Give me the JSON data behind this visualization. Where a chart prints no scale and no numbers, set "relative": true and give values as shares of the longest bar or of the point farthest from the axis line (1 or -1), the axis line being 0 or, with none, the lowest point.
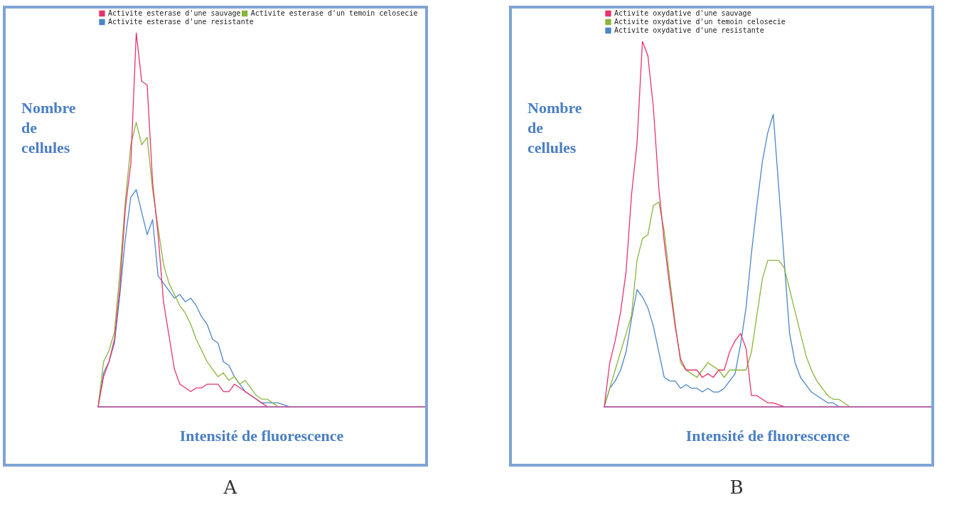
{
  "chart_data": [
    {
      "type": "line",
      "title": "A",
      "xlabel": "Intensité de fluorescence",
      "ylabel": "Nombre de cellules",
      "relative": true,
      "legend": "top left",
      "grid": false,
      "marker": "none",
      "categories": [
        null,
        null,
        null,
        null,
        null,
        null,
        null,
        null,
        null,
        null,
        null,
        null,
        null,
        null,
        null,
        null,
        null,
        null,
        null,
        null,
        null,
        null,
        null,
        null,
        null,
        null,
        null,
        null,
        null,
        null,
        null,
        null,
        null,
        null,
        null,
        null,
        null,
        null,
        null,
        null,
        null,
        null,
        null,
        null,
        null,
        null,
        null,
        null,
        null,
        null,
        null,
        null,
        null,
        null,
        null,
        null,
        null,
        null,
        null,
        null,
        null
      ],
      "series": [
        {
          "name": "Activite esterase d'une sauvage",
          "color": "#e8336b",
          "values": [
            0,
            0.08,
            0.12,
            0.18,
            0.32,
            0.53,
            0.65,
            1,
            0.87,
            0.86,
            0.6,
            0.46,
            0.28,
            0.19,
            0.1,
            0.06,
            0.05,
            0.04,
            0.05,
            0.05,
            0.06,
            0.06,
            0.06,
            0.04,
            0.04,
            0.06,
            0.05,
            0.04,
            0.03,
            0.02,
            0.01,
            0,
            null,
            null,
            null,
            null,
            null,
            null,
            null,
            null,
            null,
            null,
            null,
            null,
            null,
            null,
            null,
            null,
            null,
            null,
            null,
            null,
            null,
            null,
            null,
            null,
            null,
            null,
            null,
            null,
            null
          ]
        },
        {
          "name": "Activite esterase d'un temoin celosecie",
          "color": "#8ab43c",
          "values": [
            0,
            0.12,
            0.15,
            0.2,
            0.36,
            0.55,
            0.7,
            0.76,
            0.7,
            0.72,
            0.58,
            0.48,
            0.38,
            0.33,
            0.3,
            0.27,
            0.25,
            0.22,
            0.18,
            0.15,
            0.12,
            0.1,
            0.08,
            0.09,
            0.07,
            0.08,
            0.06,
            0.07,
            0.05,
            0.03,
            0.02,
            0.02,
            0.01,
            0,
            null,
            null,
            null,
            null,
            null,
            null,
            null,
            null,
            null,
            null,
            null,
            null,
            null,
            null,
            null,
            null,
            null,
            null,
            null,
            null,
            null,
            null,
            null,
            null,
            null,
            null,
            null
          ]
        },
        {
          "name": "Activite esterase d'une resistante",
          "color": "#4a86c8",
          "values": [
            0,
            0.09,
            0.12,
            0.17,
            0.3,
            0.45,
            0.56,
            0.58,
            0.52,
            0.46,
            0.5,
            0.35,
            0.33,
            0.31,
            0.29,
            0.3,
            0.28,
            0.29,
            0.27,
            0.24,
            0.22,
            0.18,
            0.17,
            0.12,
            0.11,
            0.08,
            0.06,
            0.04,
            0.03,
            0.02,
            0.01,
            0.01,
            0.01,
            0.01,
            0.005,
            0,
            null,
            null,
            null,
            null,
            null,
            null,
            null,
            null,
            null,
            null,
            null,
            null,
            null,
            null,
            null,
            null,
            null,
            null,
            null,
            null,
            null,
            null,
            null,
            null,
            null
          ]
        }
      ]
    },
    {
      "type": "line",
      "title": "B",
      "xlabel": "Intensité de fluorescence",
      "ylabel": "Nombre de cellules",
      "relative": true,
      "legend": "top left",
      "grid": false,
      "marker": "none",
      "categories": [
        null,
        null,
        null,
        null,
        null,
        null,
        null,
        null,
        null,
        null,
        null,
        null,
        null,
        null,
        null,
        null,
        null,
        null,
        null,
        null,
        null,
        null,
        null,
        null,
        null,
        null,
        null,
        null,
        null,
        null,
        null,
        null,
        null,
        null,
        null,
        null,
        null,
        null,
        null,
        null,
        null,
        null,
        null,
        null,
        null,
        null,
        null,
        null,
        null,
        null,
        null,
        null,
        null,
        null,
        null,
        null,
        null,
        null,
        null,
        null,
        null
      ],
      "series": [
        {
          "name": "Activite oxydative d'une sauvage",
          "color": "#e8336b",
          "values": [
            0,
            0.12,
            0.18,
            0.26,
            0.37,
            0.58,
            0.72,
            1,
            0.96,
            0.82,
            0.6,
            0.45,
            0.33,
            0.22,
            0.13,
            0.1,
            0.1,
            0.1,
            0.08,
            0.09,
            0.08,
            0.1,
            0.1,
            0.15,
            0.18,
            0.2,
            0.16,
            0.03,
            0.03,
            0.02,
            0.01,
            0.01,
            0.005,
            0,
            null,
            null,
            null,
            null,
            null,
            null,
            null,
            null,
            null,
            null,
            null,
            null,
            null,
            null,
            null,
            null,
            null,
            null,
            null,
            null,
            null,
            null,
            null,
            null,
            null,
            null,
            null
          ]
        },
        {
          "name": "Activite oxydative d'un temoin celosecie",
          "color": "#8ab43c",
          "values": [
            0,
            0.05,
            0.1,
            0.15,
            0.2,
            0.25,
            0.4,
            0.46,
            0.47,
            0.55,
            0.56,
            0.48,
            0.35,
            0.23,
            0.12,
            0.1,
            0.09,
            0.08,
            0.1,
            0.12,
            0.11,
            0.1,
            0.08,
            0.1,
            0.1,
            0.1,
            0.1,
            0.15,
            0.25,
            0.35,
            0.4,
            0.4,
            0.4,
            0.38,
            0.32,
            0.26,
            0.2,
            0.14,
            0.1,
            0.07,
            0.05,
            0.03,
            0.02,
            0.02,
            0.01,
            0,
            null,
            null,
            null,
            null,
            null,
            null,
            null,
            null,
            null,
            null,
            null,
            null,
            null,
            null,
            null
          ]
        },
        {
          "name": "Activite oxydative d'une resistante",
          "color": "#4a86c8",
          "values": [
            0,
            0.05,
            0.07,
            0.1,
            0.15,
            0.24,
            0.32,
            0.3,
            0.27,
            0.22,
            0.15,
            0.08,
            0.07,
            0.07,
            0.05,
            0.06,
            0.05,
            0.05,
            0.04,
            0.05,
            0.04,
            0.04,
            0.05,
            0.07,
            0.09,
            0.17,
            0.27,
            0.42,
            0.55,
            0.67,
            0.75,
            0.8,
            0.6,
            0.4,
            0.2,
            0.12,
            0.08,
            0.06,
            0.04,
            0.03,
            0.02,
            0.01,
            0.01,
            0,
            null,
            null,
            null,
            null,
            null,
            null,
            null,
            null,
            null,
            null,
            null,
            null,
            null,
            null,
            null,
            null,
            null
          ]
        }
      ]
    }
  ]
}
